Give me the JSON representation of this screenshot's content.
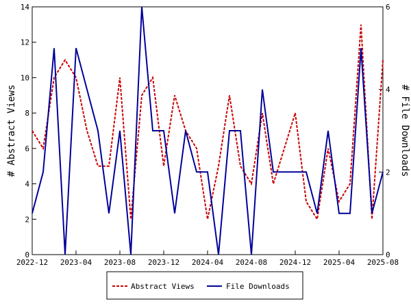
{
  "chart_data": {
    "type": "line",
    "x": [
      "2022-12",
      "2023-01",
      "2023-02",
      "2023-03",
      "2023-04",
      "2023-05",
      "2023-06",
      "2023-07",
      "2023-08",
      "2023-09",
      "2023-10",
      "2023-11",
      "2023-12",
      "2024-01",
      "2024-02",
      "2024-03",
      "2024-04",
      "2024-05",
      "2024-06",
      "2024-07",
      "2024-08",
      "2024-09",
      "2024-10",
      "2024-11",
      "2024-12",
      "2025-01",
      "2025-02",
      "2025-03",
      "2025-04",
      "2025-05",
      "2025-06",
      "2025-07",
      "2025-08"
    ],
    "x_ticks": [
      "2022-12",
      "2023-04",
      "2023-08",
      "2023-12",
      "2024-04",
      "2024-08",
      "2024-12",
      "2025-04",
      "2025-08"
    ],
    "series": [
      {
        "name": "Abstract Views",
        "axis": "left",
        "color": "#cc0000",
        "style": "dashed",
        "values": [
          7,
          6,
          10,
          11,
          10,
          7,
          5,
          5,
          10,
          2,
          9,
          10,
          5,
          9,
          7,
          6,
          2,
          5,
          9,
          5,
          4,
          8,
          4,
          6,
          8,
          3,
          2,
          6,
          3,
          4,
          13,
          2,
          11
        ]
      },
      {
        "name": "File Downloads",
        "axis": "right",
        "color": "#000099",
        "style": "solid",
        "values": [
          1,
          2,
          5,
          0,
          5,
          4,
          3,
          1,
          3,
          0,
          6,
          3,
          3,
          1,
          3,
          2,
          2,
          0,
          3,
          3,
          0,
          4,
          2,
          2,
          2,
          2,
          1,
          3,
          1,
          1,
          5,
          1,
          2
        ]
      }
    ],
    "ylabel": "# Abstract Views",
    "y2label": "# File Downloads",
    "ylim": [
      0,
      14
    ],
    "yticks": [
      0,
      2,
      4,
      6,
      8,
      10,
      12,
      14
    ],
    "y2lim": [
      0,
      6
    ],
    "y2ticks": [
      0,
      2,
      4,
      6
    ],
    "grid": false,
    "legend_position": "bottom"
  }
}
